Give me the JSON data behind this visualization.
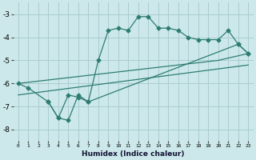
{
  "xlabel": "Humidex (Indice chaleur)",
  "bg_color": "#cce8ea",
  "grid_color": "#aacdd0",
  "line_color": "#2e7d72",
  "xlim": [
    -0.5,
    23.5
  ],
  "ylim": [
    -8.5,
    -2.5
  ],
  "yticks": [
    -8,
    -7,
    -6,
    -5,
    -4,
    -3
  ],
  "xticks": [
    0,
    1,
    2,
    3,
    4,
    5,
    6,
    7,
    8,
    9,
    10,
    11,
    12,
    13,
    14,
    15,
    16,
    17,
    18,
    19,
    20,
    21,
    22,
    23
  ],
  "line1_x": [
    0,
    1,
    3,
    4,
    5,
    6,
    7,
    8,
    9,
    10,
    11,
    12,
    13,
    14,
    15,
    16,
    17,
    18,
    19,
    20,
    21,
    22,
    23
  ],
  "line1_y": [
    -6.0,
    -6.2,
    -6.8,
    -7.5,
    -6.5,
    -6.6,
    -6.8,
    -5.0,
    -3.7,
    -3.6,
    -3.7,
    -3.1,
    -3.1,
    -3.6,
    -3.6,
    -3.7,
    -4.0,
    -4.1,
    -4.1,
    -4.1,
    -3.7,
    -4.3,
    -4.7
  ],
  "line2_x": [
    3,
    4,
    5,
    6,
    7,
    22,
    23
  ],
  "line2_y": [
    -6.8,
    -7.5,
    -7.6,
    -6.5,
    -6.8,
    -4.3,
    -4.7
  ],
  "line3_x": [
    0,
    20,
    23
  ],
  "line3_y": [
    -6.0,
    -5.0,
    -4.7
  ],
  "line4_x": [
    0,
    23
  ],
  "line4_y": [
    -6.5,
    -5.2
  ]
}
